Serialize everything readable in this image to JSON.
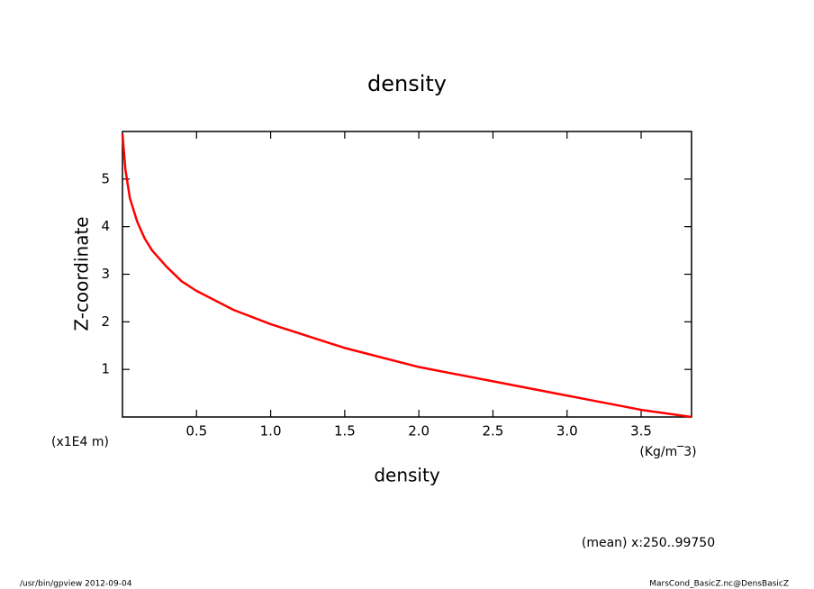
{
  "chart_data": {
    "type": "line",
    "title": "density",
    "x_label": "density",
    "y_label": "Z-coordinate",
    "x_unit": "(Kg/m‾3)",
    "y_unit": "(x1E4 m)",
    "annotation": "(mean) x:250..99750",
    "footer_left": "/usr/bin/gpview  2012-09-04",
    "footer_right": "MarsCond_BasicZ.nc@DensBasicZ",
    "xlim": [
      0,
      3.84
    ],
    "ylim": [
      0,
      6
    ],
    "xticks": [
      0.5,
      {
        "value": 1,
        "label": "1.0"
      },
      1.5,
      {
        "value": 2,
        "label": "2.0"
      },
      2.5,
      {
        "value": 3,
        "label": "3.0"
      },
      3.5
    ],
    "yticks": [
      1,
      2,
      3,
      4,
      5
    ],
    "series": [
      {
        "color": "#ff0000",
        "x": [
          3.84,
          3.5,
          3.0,
          2.5,
          2.0,
          1.5,
          1.0,
          0.75,
          0.5,
          0.4,
          0.3,
          0.2,
          0.15,
          0.1,
          0.05,
          0.02,
          0
        ],
        "values": [
          0,
          0.15,
          0.45,
          0.75,
          1.05,
          1.45,
          1.95,
          2.25,
          2.65,
          2.85,
          3.15,
          3.5,
          3.75,
          4.1,
          4.6,
          5.2,
          5.95
        ]
      }
    ]
  }
}
